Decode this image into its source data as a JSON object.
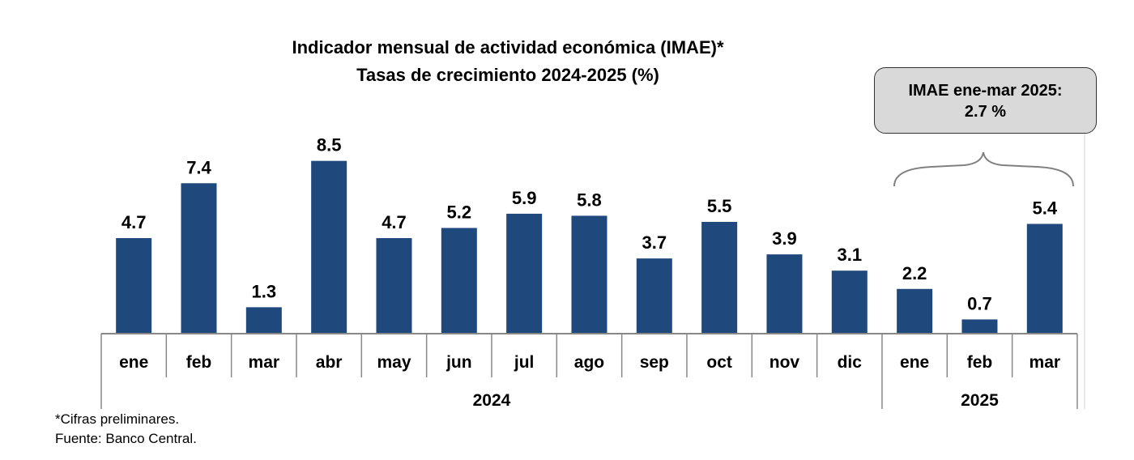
{
  "chart_data": {
    "type": "bar",
    "title": "Indicador mensual de actividad económica (IMAE)*",
    "subtitle": "Tasas de crecimiento 2024-2025 (%)",
    "categories": [
      "ene",
      "feb",
      "mar",
      "abr",
      "may",
      "jun",
      "jul",
      "ago",
      "sep",
      "oct",
      "nov",
      "dic",
      "ene",
      "feb",
      "mar"
    ],
    "groups": [
      {
        "label": "2024",
        "count": 12
      },
      {
        "label": "2025",
        "count": 3
      }
    ],
    "values": [
      4.7,
      7.4,
      1.3,
      8.5,
      4.7,
      5.2,
      5.9,
      5.8,
      3.7,
      5.5,
      3.9,
      3.1,
      2.2,
      0.7,
      5.4
    ],
    "value_labels": [
      "4.7",
      "7.4",
      "1.3",
      "8.5",
      "4.7",
      "5.2",
      "5.9",
      "5.8",
      "3.7",
      "5.5",
      "3.9",
      "3.1",
      "2.2",
      "0.7",
      "5.4"
    ],
    "ylim": [
      0,
      9
    ],
    "grid": false,
    "bar_color": "#1f497d",
    "annotation": {
      "line1": "IMAE ene-mar 2025:",
      "line2": "2.7 %"
    }
  },
  "footnotes": {
    "note": "*Cifras preliminares.",
    "source": "Fuente: Banco Central."
  }
}
